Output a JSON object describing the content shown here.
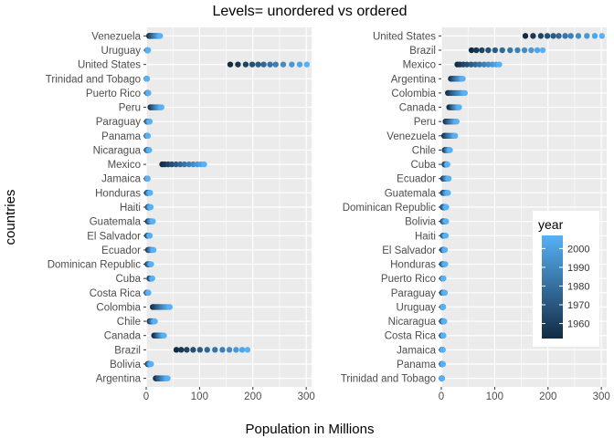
{
  "title": "Levels= unordered vs ordered",
  "ylabel": "countries",
  "xlabel": "Population in Millions",
  "legend": {
    "title": "year",
    "ticks": [
      1960,
      1970,
      1980,
      1990,
      2000
    ],
    "range": [
      1952,
      2007
    ],
    "placement": "right"
  },
  "colors": {
    "panel": "#ebebeb",
    "grid_major": "#ffffff",
    "low": "#132b43",
    "high": "#56b1f7",
    "axis_text": "#4d4d4d"
  },
  "chart_data": {
    "type": "scatter",
    "years": [
      1952,
      1957,
      1962,
      1967,
      1972,
      1977,
      1982,
      1987,
      1992,
      1997,
      2002,
      2007
    ],
    "xlim": [
      0,
      310
    ],
    "xticks": [
      0,
      100,
      200,
      300
    ],
    "grid": true,
    "panels": [
      {
        "categories": [
          "Argentina",
          "Bolivia",
          "Brazil",
          "Canada",
          "Chile",
          "Colombia",
          "Costa Rica",
          "Cuba",
          "Dominican Republic",
          "Ecuador",
          "El Salvador",
          "Guatemala",
          "Haiti",
          "Honduras",
          "Jamaica",
          "Mexico",
          "Nicaragua",
          "Panama",
          "Paraguay",
          "Peru",
          "Puerto Rico",
          "Trinidad and Tobago",
          "United States",
          "Uruguay",
          "Venezuela"
        ]
      },
      {
        "categories": [
          "Trinidad and Tobago",
          "Panama",
          "Jamaica",
          "Costa Rica",
          "Nicaragua",
          "Uruguay",
          "Paraguay",
          "Puerto Rico",
          "Honduras",
          "El Salvador",
          "Haiti",
          "Bolivia",
          "Dominican Republic",
          "Guatemala",
          "Ecuador",
          "Cuba",
          "Chile",
          "Venezuela",
          "Peru",
          "Canada",
          "Colombia",
          "Argentina",
          "Mexico",
          "Brazil",
          "United States"
        ]
      }
    ],
    "series": [
      {
        "name": "Argentina",
        "values": [
          17.9,
          19.6,
          21.3,
          22.9,
          24.8,
          26.98,
          29.3,
          31.6,
          33.96,
          36.2,
          38.3,
          40.3
        ]
      },
      {
        "name": "Bolivia",
        "values": [
          2.9,
          3.2,
          3.6,
          4.0,
          4.6,
          5.1,
          5.6,
          6.2,
          6.9,
          7.7,
          8.4,
          9.1
        ]
      },
      {
        "name": "Brazil",
        "values": [
          56.6,
          65.6,
          76.0,
          88.0,
          100.8,
          114.3,
          128.96,
          142.9,
          155.98,
          168.5,
          179.9,
          190.0
        ]
      },
      {
        "name": "Canada",
        "values": [
          14.8,
          17.0,
          18.99,
          20.8,
          22.3,
          23.8,
          25.2,
          26.5,
          28.5,
          30.3,
          31.9,
          33.4
        ]
      },
      {
        "name": "Chile",
        "values": [
          6.4,
          7.0,
          7.96,
          8.9,
          9.7,
          10.6,
          11.5,
          12.5,
          13.6,
          14.6,
          15.5,
          16.3
        ]
      },
      {
        "name": "Colombia",
        "values": [
          12.4,
          14.5,
          17.0,
          19.8,
          22.5,
          25.1,
          27.8,
          30.96,
          34.2,
          37.7,
          41.0,
          44.2
        ]
      },
      {
        "name": "Costa Rica",
        "values": [
          0.93,
          1.1,
          1.35,
          1.6,
          1.8,
          2.1,
          2.4,
          2.8,
          3.2,
          3.5,
          3.8,
          4.1
        ]
      },
      {
        "name": "Cuba",
        "values": [
          6.0,
          6.6,
          7.3,
          8.1,
          8.8,
          9.5,
          9.8,
          10.2,
          10.7,
          10.98,
          11.2,
          11.4
        ]
      },
      {
        "name": "Dominican Republic",
        "values": [
          2.5,
          2.9,
          3.5,
          4.0,
          4.7,
          5.3,
          5.97,
          6.7,
          7.4,
          7.99,
          8.7,
          9.3
        ]
      },
      {
        "name": "Ecuador",
        "values": [
          3.5,
          4.1,
          4.7,
          5.4,
          6.3,
          7.2,
          8.4,
          9.5,
          10.7,
          11.9,
          12.9,
          13.8
        ]
      },
      {
        "name": "El Salvador",
        "values": [
          2.0,
          2.4,
          2.7,
          3.2,
          3.8,
          4.3,
          4.5,
          4.8,
          5.3,
          5.8,
          6.4,
          6.9
        ]
      },
      {
        "name": "Guatemala",
        "values": [
          3.1,
          3.6,
          4.2,
          4.7,
          5.4,
          6.2,
          7.0,
          7.9,
          8.9,
          9.96,
          11.2,
          12.6
        ]
      },
      {
        "name": "Haiti",
        "values": [
          3.2,
          3.5,
          3.9,
          4.3,
          4.7,
          4.9,
          5.2,
          5.8,
          6.3,
          6.9,
          7.6,
          8.5
        ]
      },
      {
        "name": "Honduras",
        "values": [
          1.5,
          1.8,
          2.1,
          2.5,
          2.9,
          3.4,
          3.9,
          4.5,
          5.1,
          5.9,
          6.7,
          7.5
        ]
      },
      {
        "name": "Jamaica",
        "values": [
          1.4,
          1.5,
          1.7,
          1.9,
          1.99,
          2.1,
          2.3,
          2.3,
          2.4,
          2.5,
          2.7,
          2.8
        ]
      },
      {
        "name": "Mexico",
        "values": [
          30.1,
          35.0,
          41.1,
          47.99,
          55.98,
          63.8,
          71.6,
          80.1,
          88.1,
          95.9,
          102.5,
          108.7
        ]
      },
      {
        "name": "Nicaragua",
        "values": [
          1.2,
          1.4,
          1.6,
          1.9,
          2.2,
          2.6,
          2.98,
          3.3,
          4.0,
          4.6,
          5.1,
          5.7
        ]
      },
      {
        "name": "Panama",
        "values": [
          0.94,
          1.1,
          1.2,
          1.4,
          1.6,
          1.8,
          1.9,
          2.1,
          2.4,
          2.7,
          2.99,
          3.2
        ]
      },
      {
        "name": "Paraguay",
        "values": [
          1.6,
          1.8,
          2.0,
          2.3,
          2.6,
          2.98,
          3.4,
          4.0,
          4.5,
          5.2,
          5.9,
          6.7
        ]
      },
      {
        "name": "Peru",
        "values": [
          8.0,
          9.1,
          10.5,
          12.1,
          13.95,
          15.99,
          18.1,
          20.2,
          22.4,
          24.7,
          26.8,
          28.7
        ]
      },
      {
        "name": "Puerto Rico",
        "values": [
          2.2,
          2.3,
          2.4,
          2.6,
          2.8,
          3.1,
          3.3,
          3.4,
          3.6,
          3.8,
          3.9,
          3.9
        ]
      },
      {
        "name": "Trinidad and Tobago",
        "values": [
          0.66,
          0.76,
          0.88,
          0.96,
          0.98,
          1.04,
          1.12,
          1.19,
          1.18,
          1.14,
          1.1,
          1.06
        ]
      },
      {
        "name": "United States",
        "values": [
          157.6,
          171.98,
          186.5,
          198.7,
          209.9,
          220.2,
          232.2,
          242.8,
          256.9,
          272.9,
          287.7,
          301.1
        ]
      },
      {
        "name": "Uruguay",
        "values": [
          2.25,
          2.4,
          2.5,
          2.7,
          2.8,
          2.9,
          2.9,
          3.0,
          3.1,
          3.3,
          3.4,
          3.4
        ]
      },
      {
        "name": "Venezuela",
        "values": [
          5.4,
          6.6,
          8.1,
          9.7,
          11.5,
          13.5,
          15.6,
          17.9,
          20.3,
          22.6,
          24.3,
          26.1
        ]
      }
    ]
  }
}
